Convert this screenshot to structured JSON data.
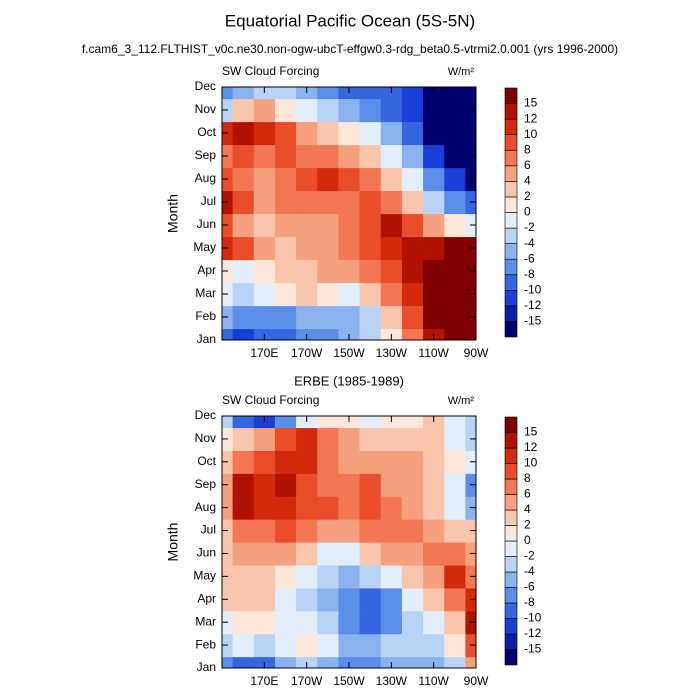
{
  "title": "Equatorial Pacific Ocean (5S-5N)",
  "subtitle": "f.cam6_3_112.FLTHIST_v0c.ne30.non-ogw-ubcT-effgw0.3-rdg_beta0.5-vtrmi2.0.001 (yrs 1996-2000)",
  "chart_data": [
    {
      "type": "contour",
      "left_label": "SW Cloud Forcing",
      "units": "W/m²",
      "y_label": "Month",
      "x": [
        150,
        160,
        170,
        180,
        190,
        200,
        210,
        220,
        230,
        240,
        250,
        260,
        270
      ],
      "xlim": [
        150,
        270
      ],
      "xticks": [
        {
          "value": 170,
          "label": "170E"
        },
        {
          "value": 190,
          "label": "170W"
        },
        {
          "value": 210,
          "label": "150W"
        },
        {
          "value": 230,
          "label": "130W"
        },
        {
          "value": 250,
          "label": "110W"
        },
        {
          "value": 270,
          "label": "90W"
        }
      ],
      "categories": [
        "Jan",
        "Feb",
        "Mar",
        "Apr",
        "May",
        "Jun",
        "Jul",
        "Aug",
        "Sep",
        "Oct",
        "Nov",
        "Dec"
      ],
      "z": [
        [
          -10,
          -12,
          -10,
          -10,
          -8,
          -8,
          -6,
          -4,
          0,
          6,
          12,
          16,
          16
        ],
        [
          -6,
          -8,
          -8,
          -8,
          -6,
          -6,
          -6,
          -4,
          2,
          8,
          16,
          16,
          16
        ],
        [
          -2,
          -4,
          -2,
          0,
          2,
          0,
          -2,
          2,
          6,
          10,
          16,
          16,
          16
        ],
        [
          0,
          -2,
          0,
          2,
          2,
          4,
          4,
          6,
          8,
          12,
          16,
          16,
          16
        ],
        [
          10,
          8,
          4,
          2,
          4,
          4,
          6,
          8,
          10,
          12,
          12,
          16,
          16
        ],
        [
          8,
          4,
          2,
          4,
          4,
          4,
          6,
          8,
          12,
          8,
          4,
          0,
          -2
        ],
        [
          12,
          8,
          4,
          6,
          6,
          6,
          6,
          8,
          6,
          2,
          -4,
          -8,
          -10
        ],
        [
          8,
          6,
          4,
          6,
          8,
          10,
          8,
          6,
          2,
          -2,
          -8,
          -12,
          -16
        ],
        [
          6,
          8,
          6,
          8,
          6,
          6,
          4,
          2,
          -2,
          -6,
          -12,
          -16,
          -16
        ],
        [
          10,
          12,
          10,
          8,
          4,
          2,
          0,
          -2,
          -6,
          -10,
          -16,
          -16,
          -16
        ],
        [
          -4,
          2,
          4,
          0,
          -2,
          -4,
          -6,
          -8,
          -10,
          -12,
          -16,
          -16,
          -16
        ],
        [
          -8,
          -6,
          -4,
          -4,
          -6,
          -8,
          -10,
          -10,
          -10,
          -12,
          -16,
          -16,
          -16
        ]
      ],
      "levels": [
        -15,
        -12,
        -10,
        -8,
        -6,
        -4,
        -2,
        0,
        2,
        4,
        6,
        8,
        10,
        12,
        15
      ],
      "colors": [
        "#00006e",
        "#0a1ea8",
        "#1a3fd6",
        "#3566e0",
        "#5a8ee8",
        "#8ab2ef",
        "#b9d3f6",
        "#e2eefb",
        "#fde7da",
        "#f9c6ab",
        "#f5a07f",
        "#f27752",
        "#ea4d2a",
        "#d42a0c",
        "#b01200",
        "#7f0000"
      ]
    },
    {
      "type": "contour",
      "title": "ERBE (1985-1989)",
      "left_label": "SW Cloud Forcing",
      "units": "W/m²",
      "y_label": "Month",
      "x": [
        150,
        160,
        170,
        180,
        190,
        200,
        210,
        220,
        230,
        240,
        250,
        260,
        270
      ],
      "xlim": [
        150,
        270
      ],
      "xticks": [
        {
          "value": 170,
          "label": "170E"
        },
        {
          "value": 190,
          "label": "170W"
        },
        {
          "value": 210,
          "label": "150W"
        },
        {
          "value": 230,
          "label": "130W"
        },
        {
          "value": 250,
          "label": "110W"
        },
        {
          "value": 270,
          "label": "90W"
        }
      ],
      "categories": [
        "Jan",
        "Feb",
        "Mar",
        "Apr",
        "May",
        "Jun",
        "Jul",
        "Aug",
        "Sep",
        "Oct",
        "Nov",
        "Dec"
      ],
      "z": [
        [
          -8,
          -10,
          -10,
          -6,
          -4,
          -6,
          -8,
          -8,
          -6,
          -6,
          -6,
          -4,
          4
        ],
        [
          -4,
          -2,
          -4,
          -2,
          0,
          -2,
          -6,
          -6,
          -4,
          -4,
          -4,
          0,
          8
        ],
        [
          -2,
          0,
          0,
          -2,
          -2,
          -4,
          -8,
          -10,
          -8,
          -4,
          -2,
          2,
          12
        ],
        [
          2,
          2,
          2,
          -2,
          -4,
          -6,
          -8,
          -10,
          -8,
          -2,
          2,
          6,
          10
        ],
        [
          2,
          2,
          2,
          0,
          -2,
          -4,
          -6,
          -4,
          -2,
          2,
          4,
          10,
          6
        ],
        [
          2,
          4,
          4,
          4,
          2,
          -2,
          -2,
          2,
          4,
          4,
          6,
          6,
          4
        ],
        [
          2,
          6,
          6,
          8,
          6,
          4,
          4,
          6,
          6,
          6,
          4,
          2,
          2
        ],
        [
          4,
          12,
          10,
          10,
          8,
          8,
          6,
          8,
          6,
          4,
          2,
          -2,
          -6
        ],
        [
          4,
          12,
          10,
          12,
          8,
          6,
          6,
          8,
          4,
          4,
          2,
          -2,
          -8
        ],
        [
          2,
          6,
          8,
          10,
          10,
          6,
          4,
          4,
          4,
          4,
          2,
          0,
          -2
        ],
        [
          0,
          2,
          4,
          8,
          10,
          6,
          4,
          2,
          2,
          2,
          2,
          -2,
          -4
        ],
        [
          -4,
          -10,
          -12,
          -8,
          -2,
          0,
          0,
          -2,
          0,
          0,
          2,
          -2,
          -4
        ]
      ],
      "levels": [
        -15,
        -12,
        -10,
        -8,
        -6,
        -4,
        -2,
        0,
        2,
        4,
        6,
        8,
        10,
        12,
        15
      ],
      "colors": [
        "#00006e",
        "#0a1ea8",
        "#1a3fd6",
        "#3566e0",
        "#5a8ee8",
        "#8ab2ef",
        "#b9d3f6",
        "#e2eefb",
        "#fde7da",
        "#f9c6ab",
        "#f5a07f",
        "#f27752",
        "#ea4d2a",
        "#d42a0c",
        "#b01200",
        "#7f0000"
      ]
    }
  ]
}
